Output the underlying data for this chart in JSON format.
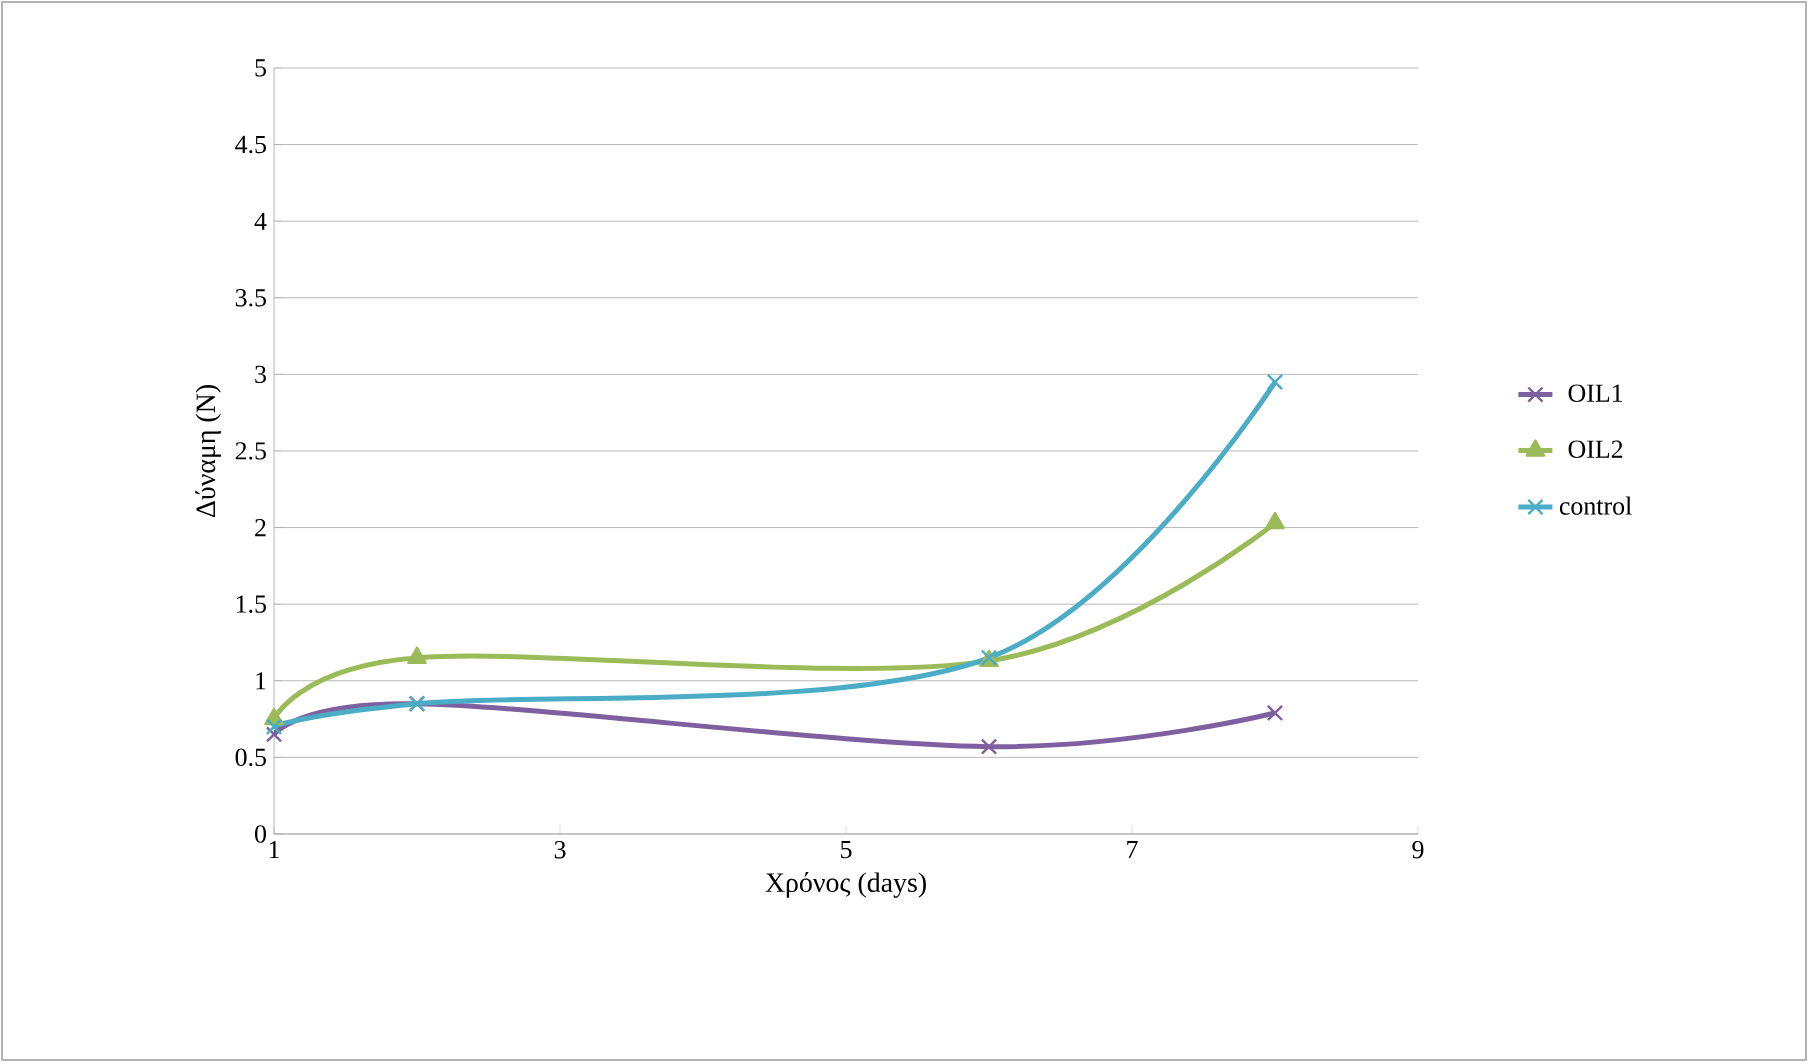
{
  "chart_data": {
    "type": "line",
    "xlabel": "Χρόνος (days)",
    "ylabel": "Δύναμη (N)",
    "x": [
      1,
      2,
      6,
      8
    ],
    "xlim": [
      1,
      9
    ],
    "xticks": [
      1,
      3,
      5,
      7,
      9
    ],
    "ylim": [
      0,
      5
    ],
    "yticks": [
      0,
      0.5,
      1,
      1.5,
      2,
      2.5,
      3,
      3.5,
      4,
      4.5,
      5
    ],
    "grid": "y",
    "legend": "right",
    "series": [
      {
        "name": "OIL1",
        "color": "#7e5fa0",
        "marker": "cross",
        "values": [
          0.65,
          0.85,
          0.57,
          0.79
        ]
      },
      {
        "name": "OIL2",
        "color": "#9bbb59",
        "marker": "triangle",
        "values": [
          0.75,
          1.15,
          1.13,
          2.03
        ]
      },
      {
        "name": "control",
        "color": "#4bacc6",
        "marker": "cross",
        "values": [
          0.7,
          0.85,
          1.15,
          2.95
        ]
      }
    ]
  }
}
